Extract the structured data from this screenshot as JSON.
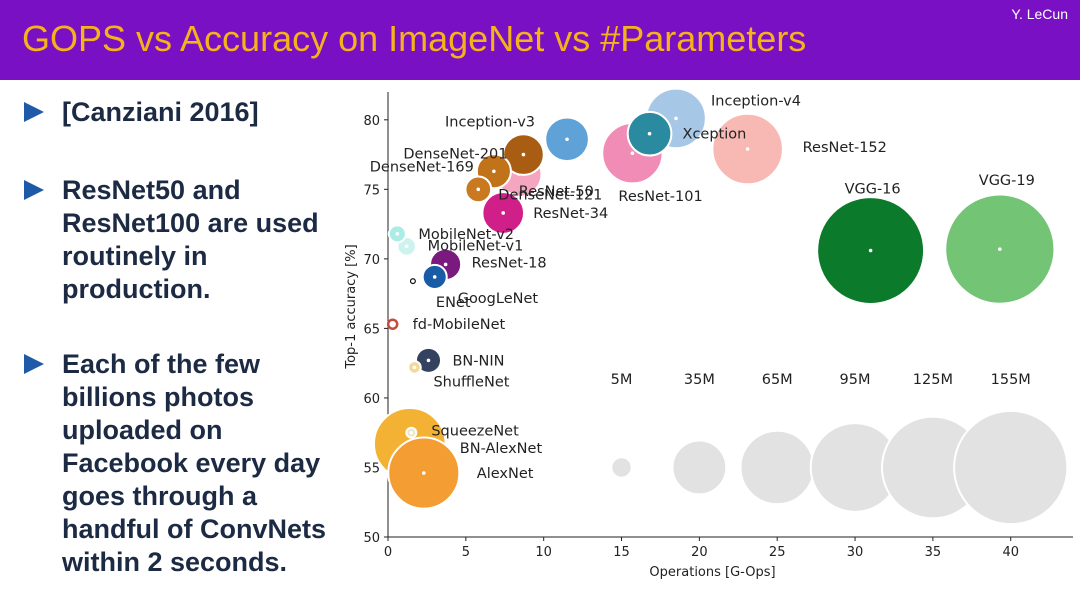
{
  "slide": {
    "title": "GOPS vs Accuracy on ImageNet vs #Parameters",
    "author": "Y. LeCun",
    "bullets": [
      "[Canziani 2016]",
      "ResNet50 and ResNet100 are used routinely in production.",
      "Each of the few billions photos uploaded on Facebook every day goes through a handful of ConvNets within 2 seconds."
    ],
    "colors": {
      "header": "#7a10c4",
      "title": "#f5b21b",
      "bullet_marker": "#1f5aa8",
      "bullet_text": "#1c2a44"
    }
  },
  "chart_data": {
    "type": "scatter",
    "subtype": "bubble",
    "xlabel": "Operations [G-Ops]",
    "ylabel": "Top-1 accuracy [%]",
    "xlim": [
      0,
      44
    ],
    "ylim": [
      50,
      82
    ],
    "xticks": [
      0,
      5,
      10,
      15,
      20,
      25,
      30,
      35,
      40
    ],
    "yticks": [
      50,
      55,
      60,
      65,
      70,
      75,
      80
    ],
    "grid": false,
    "points": [
      {
        "name": "Inception-v4",
        "x": 18.5,
        "y": 80.1,
        "params": 43,
        "color": "#a7c7e7"
      },
      {
        "name": "Inception-v3",
        "x": 11.5,
        "y": 78.6,
        "params": 23,
        "color": "#5fa2d8"
      },
      {
        "name": "Xception",
        "x": 16.8,
        "y": 79.0,
        "params": 23,
        "color": "#2a8aa0"
      },
      {
        "name": "ResNet-152",
        "x": 23.1,
        "y": 77.9,
        "params": 60,
        "color": "#f8b9b4"
      },
      {
        "name": "ResNet-50",
        "x": 8.4,
        "y": 76.1,
        "params": 25,
        "color": "#f6a5c0"
      },
      {
        "name": "ResNet-101",
        "x": 15.7,
        "y": 77.6,
        "params": 44,
        "color": "#f08cb6"
      },
      {
        "name": "DenseNet-201",
        "x": 8.7,
        "y": 77.5,
        "params": 20,
        "color": "#a85d13"
      },
      {
        "name": "DenseNet-169",
        "x": 6.8,
        "y": 76.3,
        "params": 14,
        "color": "#c1731a"
      },
      {
        "name": "DenseNet-121",
        "x": 5.8,
        "y": 75.0,
        "params": 8,
        "color": "#c97a20"
      },
      {
        "name": "ResNet-34",
        "x": 7.4,
        "y": 73.3,
        "params": 21,
        "color": "#d11f8a"
      },
      {
        "name": "MobileNet-v2",
        "x": 0.6,
        "y": 71.8,
        "params": 3.5,
        "color": "#a9ede6"
      },
      {
        "name": "MobileNet-v1",
        "x": 1.2,
        "y": 70.9,
        "params": 4.2,
        "color": "#cdf3ee"
      },
      {
        "name": "ResNet-18",
        "x": 3.7,
        "y": 69.6,
        "params": 11.7,
        "color": "#7b1a7e"
      },
      {
        "name": "GoogLeNet",
        "x": 3.0,
        "y": 68.7,
        "params": 7,
        "color": "#1a5ba6"
      },
      {
        "name": "ENet",
        "x": 1.6,
        "y": 68.4,
        "params": 0.4,
        "color": "#111111"
      },
      {
        "name": "fd-MobileNet",
        "x": 0.3,
        "y": 65.3,
        "params": 2.9,
        "color": "#c94a3c"
      },
      {
        "name": "BN-NIN",
        "x": 2.6,
        "y": 62.7,
        "params": 7.6,
        "color": "#33425f"
      },
      {
        "name": "ShuffleNet",
        "x": 1.7,
        "y": 62.2,
        "params": 1.9,
        "color": "#f3d89a"
      },
      {
        "name": "SqueezeNet",
        "x": 1.5,
        "y": 57.5,
        "params": 1.2,
        "color": "#eae9c7"
      },
      {
        "name": "BN-AlexNet",
        "x": 1.4,
        "y": 56.7,
        "params": 62,
        "color": "#f3b233"
      },
      {
        "name": "AlexNet",
        "x": 2.3,
        "y": 54.6,
        "params": 61,
        "color": "#f39d33"
      },
      {
        "name": "VGG-16",
        "x": 31.0,
        "y": 70.6,
        "params": 138,
        "color": "#0b7a2a"
      },
      {
        "name": "VGG-19",
        "x": 39.3,
        "y": 70.7,
        "params": 144,
        "color": "#74c476"
      }
    ],
    "size_legend": [
      {
        "label": "5M",
        "x": 15,
        "params": 5
      },
      {
        "label": "35M",
        "x": 20,
        "params": 35
      },
      {
        "label": "65M",
        "x": 25,
        "params": 65
      },
      {
        "label": "95M",
        "x": 30,
        "params": 95
      },
      {
        "label": "125M",
        "x": 35,
        "params": 125
      },
      {
        "label": "155M",
        "x": 40,
        "params": 155
      }
    ],
    "size_legend_y": 55
  }
}
